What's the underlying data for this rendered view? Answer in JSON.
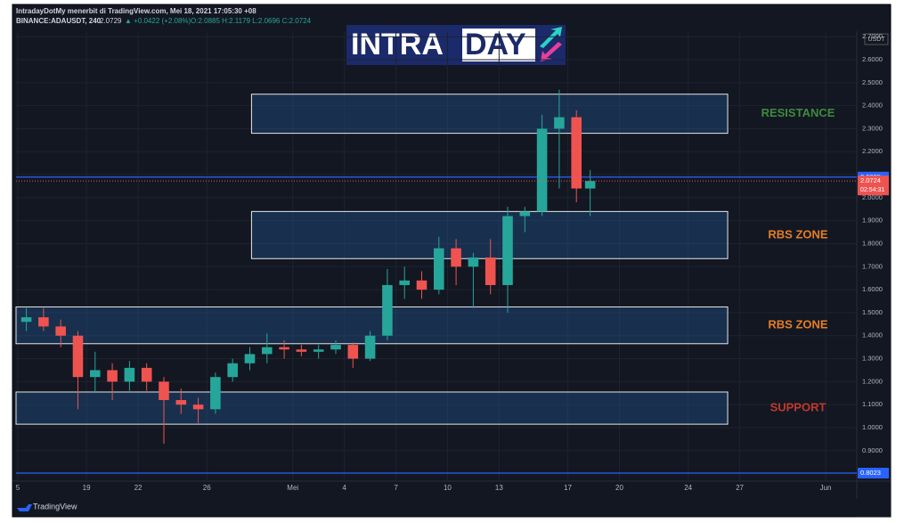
{
  "chart_data": {
    "type": "candlestick",
    "header": {
      "publisher": "IntradayDotMy menerbit di TradingView.com, Mei 18, 2021 17:05:30 +08",
      "symbol": "BINANCE:ADAUSDT, 240",
      "price": "2.0729",
      "change": "▲ +0.0422 (+2.08%)",
      "ohlc": "O:2.0885 H:2.1179 L:2.0696 C:2.0724"
    },
    "logo": {
      "left": "INTRA",
      "right": "DAY"
    },
    "currency": "USDT",
    "footer": "TradingView",
    "up_color": "#26a69a",
    "down_color": "#ef5350",
    "x": [
      0.5,
      1.5,
      2.5,
      3.5,
      4.5,
      5.5,
      6.5,
      7.5,
      8.5,
      9.5,
      10.5,
      11.5,
      12.5,
      13.5,
      14.5,
      15.5,
      16.5,
      17.5,
      18.5,
      19.5,
      20.5,
      21.5,
      22.5,
      23.5,
      24.5,
      25.5,
      26.5,
      27.5,
      28.5,
      29.5,
      30.5,
      31.5,
      32.5,
      33.3
    ],
    "open": [
      1.46,
      1.48,
      1.44,
      1.4,
      1.22,
      1.25,
      1.2,
      1.26,
      1.2,
      1.12,
      1.1,
      1.08,
      1.22,
      1.28,
      1.32,
      1.35,
      1.34,
      1.33,
      1.34,
      1.36,
      1.3,
      1.4,
      1.62,
      1.64,
      1.6,
      1.78,
      1.7,
      1.74,
      1.62,
      1.92,
      1.94,
      2.3,
      2.35,
      2.04
    ],
    "high": [
      1.52,
      1.52,
      1.47,
      1.42,
      1.33,
      1.28,
      1.29,
      1.28,
      1.22,
      1.17,
      1.13,
      1.24,
      1.3,
      1.35,
      1.41,
      1.38,
      1.36,
      1.36,
      1.38,
      1.37,
      1.42,
      1.69,
      1.7,
      1.68,
      1.83,
      1.82,
      1.76,
      1.82,
      1.96,
      1.96,
      2.36,
      2.47,
      2.38,
      2.12
    ],
    "low": [
      1.42,
      1.42,
      1.35,
      1.08,
      1.15,
      1.12,
      1.16,
      1.16,
      0.93,
      1.06,
      1.02,
      1.06,
      1.2,
      1.25,
      1.28,
      1.3,
      1.31,
      1.3,
      1.32,
      1.26,
      1.29,
      1.38,
      1.56,
      1.56,
      1.58,
      1.62,
      1.52,
      1.58,
      1.5,
      1.85,
      1.92,
      2.04,
      1.98,
      1.92
    ],
    "close": [
      1.48,
      1.44,
      1.4,
      1.22,
      1.25,
      1.2,
      1.26,
      1.2,
      1.12,
      1.1,
      1.08,
      1.22,
      1.28,
      1.32,
      1.35,
      1.34,
      1.33,
      1.34,
      1.36,
      1.3,
      1.4,
      1.62,
      1.64,
      1.6,
      1.78,
      1.7,
      1.74,
      1.62,
      1.92,
      1.94,
      2.3,
      2.35,
      2.04,
      2.0724
    ],
    "xlim": [
      -0.1,
      48.81
    ],
    "xticks": [
      {
        "value": 0,
        "label": "5"
      },
      {
        "value": 4,
        "label": "19"
      },
      {
        "value": 7,
        "label": "22"
      },
      {
        "value": 11,
        "label": "26"
      },
      {
        "value": 16,
        "label": "Mei"
      },
      {
        "value": 19,
        "label": "4"
      },
      {
        "value": 22,
        "label": "7"
      },
      {
        "value": 25,
        "label": "10"
      },
      {
        "value": 28,
        "label": "13"
      },
      {
        "value": 32,
        "label": "17"
      },
      {
        "value": 35,
        "label": "20"
      },
      {
        "value": 39,
        "label": "24"
      },
      {
        "value": 42,
        "label": "27"
      },
      {
        "value": 47,
        "label": "Jun"
      }
    ],
    "ylim": [
      0.7675,
      2.724
    ],
    "yticks": [
      {
        "value": 0.9,
        "label": "0.9000"
      },
      {
        "value": 1.0,
        "label": "1.0000"
      },
      {
        "value": 1.1,
        "label": "1.1000"
      },
      {
        "value": 1.2,
        "label": "1.2000"
      },
      {
        "value": 1.3,
        "label": "1.3000"
      },
      {
        "value": 1.4,
        "label": "1.4000"
      },
      {
        "value": 1.5,
        "label": "1.5000"
      },
      {
        "value": 1.6,
        "label": "1.6000"
      },
      {
        "value": 1.7,
        "label": "1.7000"
      },
      {
        "value": 1.8,
        "label": "1.8000"
      },
      {
        "value": 1.9,
        "label": "1.9000"
      },
      {
        "value": 2.0,
        "label": "2.0000"
      },
      {
        "value": 2.1,
        "label": "2.1000"
      },
      {
        "value": 2.2,
        "label": "2.2000"
      },
      {
        "value": 2.3,
        "label": "2.3000"
      },
      {
        "value": 2.4,
        "label": "2.4000"
      },
      {
        "value": 2.5,
        "label": "2.5000"
      },
      {
        "value": 2.6,
        "label": "2.6000"
      },
      {
        "value": 2.7,
        "label": "2.7000"
      }
    ],
    "grid": true,
    "zones": [
      {
        "label": "RESISTANCE",
        "color": "#3d8b3d",
        "top": 2.45,
        "bottom": 2.28,
        "start": 13.6,
        "end": 41.3
      },
      {
        "label": "RBS ZONE",
        "color": "#e67e22",
        "top": 1.94,
        "bottom": 1.735,
        "start": 13.6,
        "end": 41.3
      },
      {
        "label": "RBS ZONE",
        "color": "#e67e22",
        "top": 1.525,
        "bottom": 1.365,
        "start": -0.1,
        "end": 41.3
      },
      {
        "label": "SUPPORT",
        "color": "#c0392b",
        "top": 1.155,
        "bottom": 1.015,
        "start": -0.1,
        "end": 41.3
      }
    ],
    "hlines": [
      {
        "value": 2.0895,
        "label": "2.0895",
        "color": "#2962ff"
      },
      {
        "value": 0.8023,
        "label": "0.8023",
        "color": "#2962ff"
      }
    ],
    "last": {
      "value": 2.0724,
      "label": "2.0724",
      "countdown": "02:54:31",
      "color": "#ef5350"
    }
  }
}
